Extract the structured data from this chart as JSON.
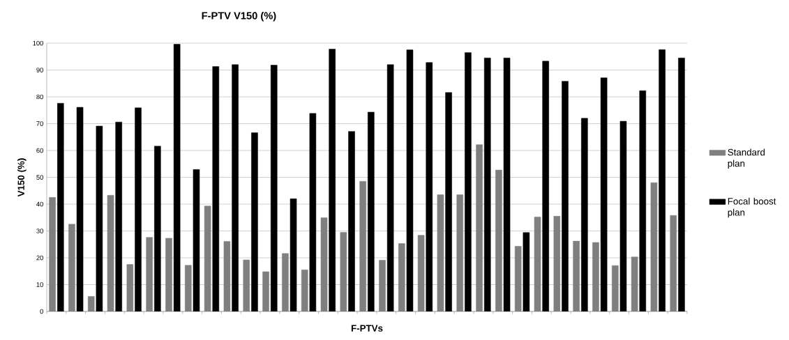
{
  "chart_data": {
    "type": "bar",
    "title": "F-PTV V150 (%)",
    "xlabel": "F-PTVs",
    "ylabel": "V150 (%)",
    "categories": [
      null,
      null,
      null,
      null,
      null,
      null,
      null,
      null,
      null,
      null,
      null,
      null,
      null,
      null,
      null,
      null,
      null,
      null,
      null,
      null,
      null,
      null,
      null,
      null,
      null,
      null,
      null,
      null,
      null,
      null,
      null,
      null,
      null
    ],
    "series": [
      {
        "name": "Standard plan",
        "color": "#7f7f7f",
        "values": [
          42.5,
          32.5,
          5.6,
          43.3,
          17.5,
          27.6,
          27.3,
          17.2,
          39.3,
          26.1,
          19.2,
          14.8,
          21.6,
          15.5,
          34.9,
          29.5,
          48.5,
          19.1,
          25.3,
          28.4,
          43.5,
          43.5,
          62.2,
          52.7,
          24.3,
          35.2,
          35.5,
          26.2,
          25.7,
          17.1,
          20.3,
          48.0,
          35.8
        ]
      },
      {
        "name": "Focal boost plan",
        "color": "#000000",
        "values": [
          77.6,
          76.1,
          69.1,
          70.6,
          75.9,
          61.6,
          99.6,
          52.9,
          91.3,
          92.0,
          66.6,
          91.8,
          42.0,
          73.8,
          97.8,
          67.1,
          74.3,
          92.0,
          97.5,
          92.8,
          81.6,
          96.5,
          94.5,
          94.5,
          29.4,
          93.3,
          85.8,
          72.0,
          87.1,
          70.9,
          82.3,
          97.6,
          94.5
        ]
      }
    ],
    "ylim": [
      0,
      100
    ],
    "yticks": [
      0,
      10,
      20,
      30,
      40,
      50,
      60,
      70,
      80,
      90,
      100
    ],
    "grid": "y",
    "legend": "right",
    "tick_labels": "y"
  }
}
